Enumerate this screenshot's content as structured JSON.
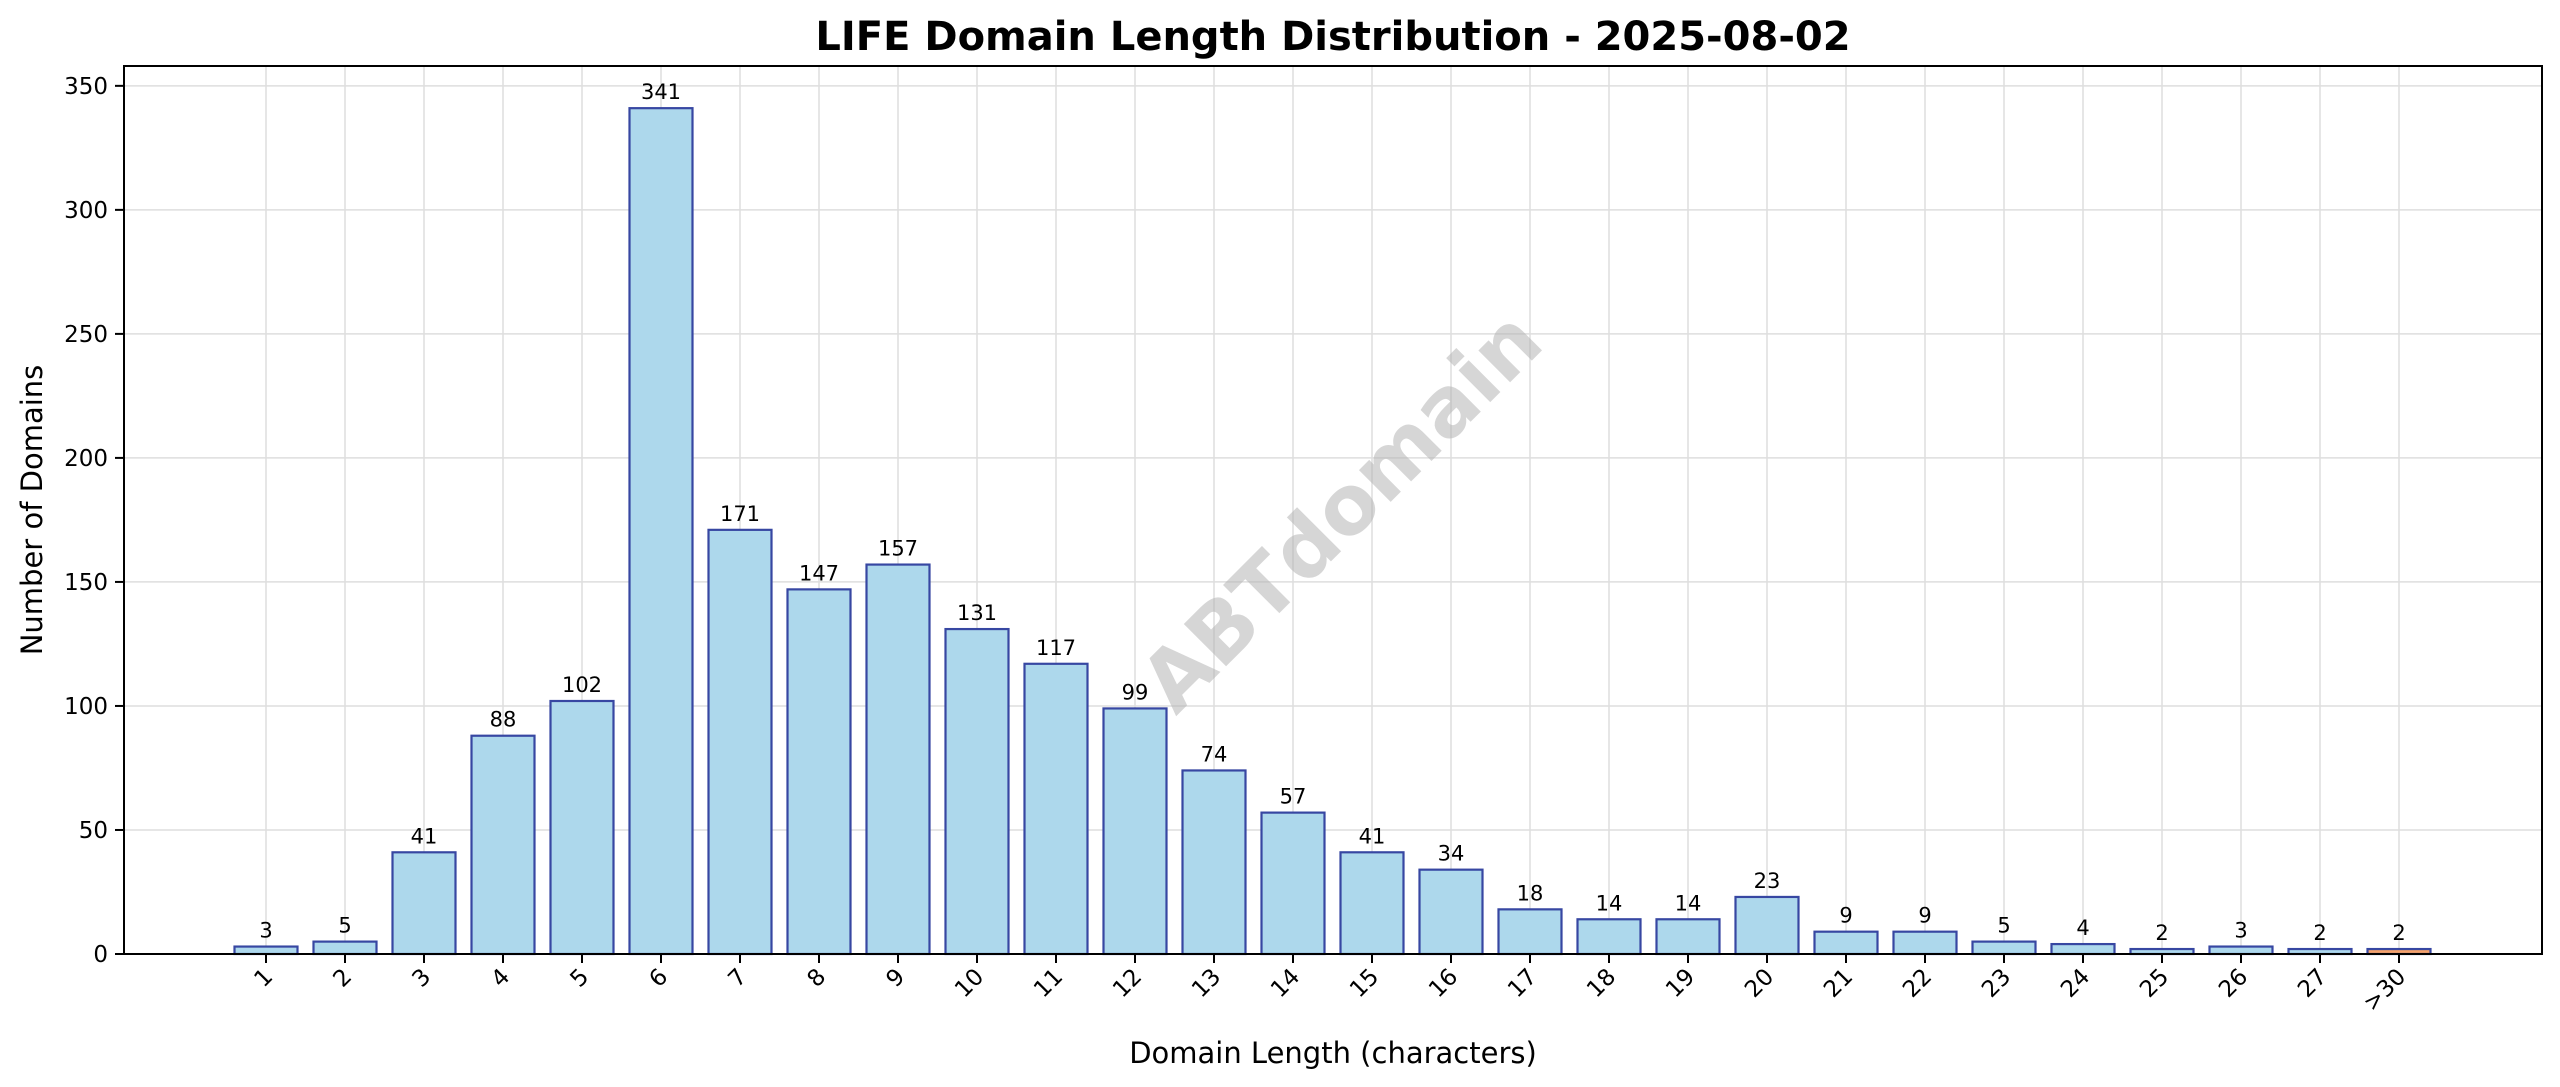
{
  "chart_data": {
    "type": "bar",
    "title": "LIFE Domain Length Distribution - 2025-08-02",
    "xlabel": "Domain Length (characters)",
    "ylabel": "Number of Domains",
    "categories": [
      "1",
      "2",
      "3",
      "4",
      "5",
      "6",
      "7",
      "8",
      "9",
      "10",
      "11",
      "12",
      "13",
      "14",
      "15",
      "16",
      "17",
      "18",
      "19",
      "20",
      "21",
      "22",
      "23",
      "24",
      "25",
      "26",
      "27",
      ">30"
    ],
    "values": [
      3,
      5,
      41,
      88,
      102,
      341,
      171,
      147,
      157,
      131,
      117,
      99,
      74,
      57,
      41,
      34,
      18,
      14,
      14,
      23,
      9,
      9,
      5,
      4,
      2,
      3,
      2,
      2
    ],
    "ylim": [
      0,
      358
    ],
    "yticks": [
      0,
      50,
      100,
      150,
      200,
      250,
      300,
      350
    ],
    "grid": true,
    "legend": "none",
    "watermark": "ABTdomain",
    "colors": {
      "bar_fill": "#add8ec",
      "bar_edge": "#3747a2",
      "highlight_fill": "#f5a26a",
      "highlight_edge": "#3747a2",
      "grid": "#dedede"
    },
    "highlight_categories": [
      ">30"
    ]
  }
}
